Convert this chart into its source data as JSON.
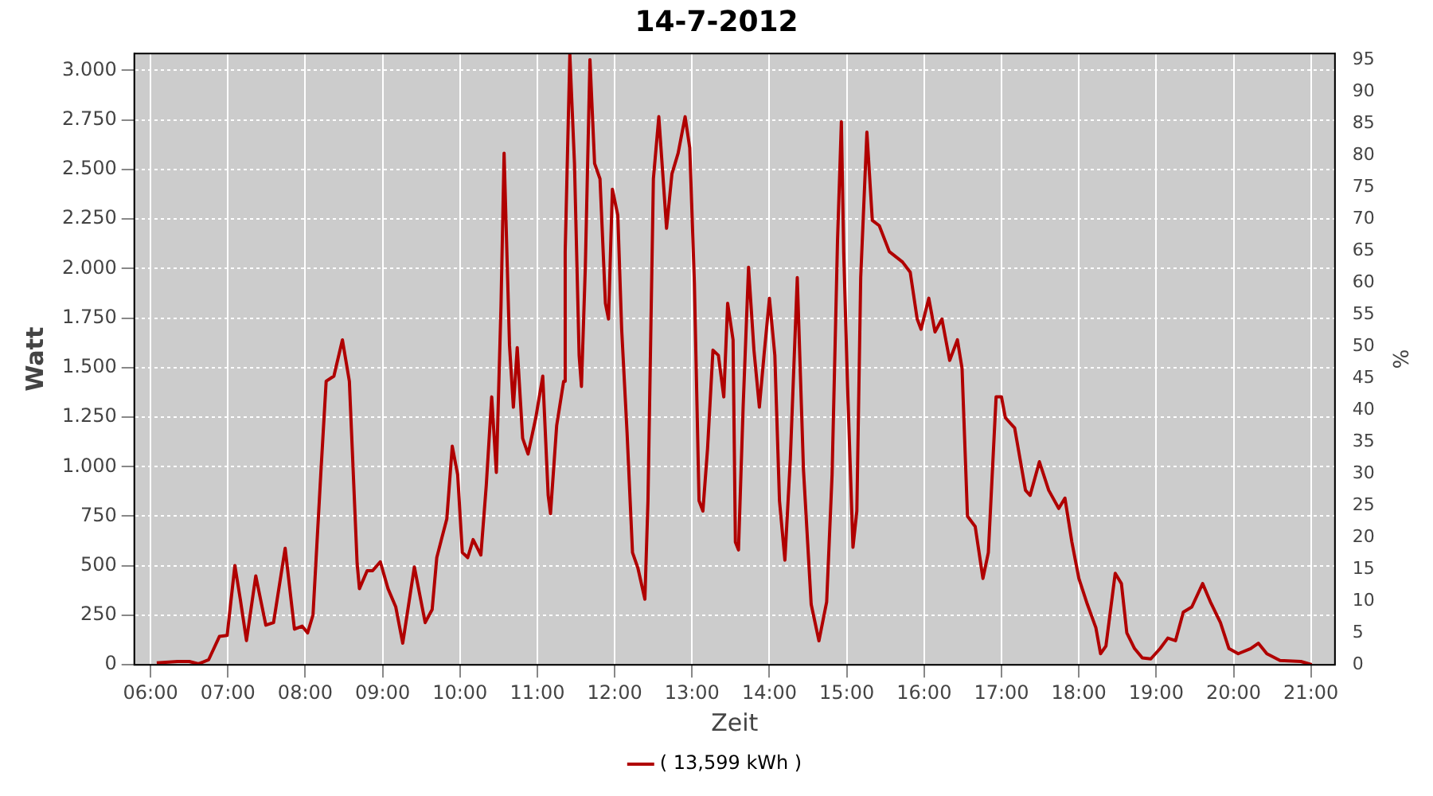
{
  "chart_data": {
    "type": "line",
    "title": "14-7-2012",
    "xlabel": "Zeit",
    "ylabel": "Watt",
    "y2label": "%",
    "xlim": [
      5.79,
      21.31
    ],
    "xticks": [
      {
        "value": 6,
        "label": "06:00"
      },
      {
        "value": 7,
        "label": "07:00"
      },
      {
        "value": 8,
        "label": "08:00"
      },
      {
        "value": 9,
        "label": "09:00"
      },
      {
        "value": 10,
        "label": "10:00"
      },
      {
        "value": 11,
        "label": "11:00"
      },
      {
        "value": 12,
        "label": "12:00"
      },
      {
        "value": 13,
        "label": "13:00"
      },
      {
        "value": 14,
        "label": "14:00"
      },
      {
        "value": 15,
        "label": "15:00"
      },
      {
        "value": 16,
        "label": "16:00"
      },
      {
        "value": 17,
        "label": "17:00"
      },
      {
        "value": 18,
        "label": "18:00"
      },
      {
        "value": 19,
        "label": "19:00"
      },
      {
        "value": 20,
        "label": "20:00"
      },
      {
        "value": 21,
        "label": "21:00"
      }
    ],
    "ylim": [
      0,
      3085
    ],
    "yticks": [
      0,
      250,
      500,
      750,
      {
        "value": 1000,
        "label": "1.000"
      },
      {
        "value": 1250,
        "label": "1.250"
      },
      {
        "value": 1500,
        "label": "1.500"
      },
      {
        "value": 1750,
        "label": "1.750"
      },
      {
        "value": 2000,
        "label": "2.000"
      },
      {
        "value": 2250,
        "label": "2.250"
      },
      {
        "value": 2500,
        "label": "2.500"
      },
      {
        "value": 2750,
        "label": "2.750"
      },
      {
        "value": 3000,
        "label": "3.000"
      }
    ],
    "y2lim": [
      0,
      96
    ],
    "y2ticks": [
      0,
      5,
      10,
      15,
      20,
      25,
      30,
      35,
      40,
      45,
      50,
      55,
      60,
      65,
      70,
      75,
      80,
      85,
      90,
      95
    ],
    "grid": true,
    "legend": "bottom",
    "marker": "none",
    "line_style": "solid",
    "series": [
      {
        "name": "( 13,599 kWh )",
        "color": "#b00000",
        "x": [
          6.08,
          6.35,
          6.5,
          6.62,
          6.75,
          6.89,
          6.99,
          7.09,
          7.16,
          7.24,
          7.36,
          7.49,
          7.59,
          7.74,
          7.86,
          7.96,
          8.03,
          8.1,
          8.2,
          8.27,
          8.37,
          8.48,
          8.57,
          8.67,
          8.7,
          8.8,
          8.87,
          8.97,
          9.07,
          9.17,
          9.26,
          9.41,
          9.55,
          9.64,
          9.7,
          9.76,
          9.83,
          9.9,
          9.97,
          10.03,
          10.1,
          10.17,
          10.27,
          10.34,
          10.41,
          10.47,
          10.53,
          10.57,
          10.64,
          10.69,
          10.74,
          10.81,
          10.88,
          10.98,
          11.07,
          11.14,
          11.17,
          11.25,
          11.34,
          11.36,
          11.42,
          11.48,
          11.54,
          11.57,
          11.62,
          11.68,
          11.74,
          11.81,
          11.88,
          11.92,
          11.97,
          12.04,
          12.09,
          12.16,
          12.23,
          12.3,
          12.39,
          12.43,
          12.5,
          12.57,
          12.64,
          12.67,
          12.74,
          12.82,
          12.91,
          12.97,
          13.03,
          13.09,
          13.14,
          13.2,
          13.27,
          13.34,
          13.41,
          13.46,
          13.53,
          13.56,
          13.6,
          13.66,
          13.73,
          13.8,
          13.87,
          13.93,
          14,
          14.07,
          14.13,
          14.2,
          14.27,
          14.36,
          14.44,
          14.54,
          14.64,
          14.74,
          14.81,
          14.88,
          14.93,
          14.96,
          15.01,
          15.08,
          15.13,
          15.18,
          15.26,
          15.33,
          15.42,
          15.55,
          15.72,
          15.82,
          15.91,
          15.96,
          16.06,
          16.14,
          16.23,
          16.33,
          16.43,
          16.49,
          16.56,
          16.66,
          16.76,
          16.83,
          16.93,
          17,
          17.05,
          17.17,
          17.31,
          17.37,
          17.49,
          17.61,
          17.74,
          17.82,
          17.91,
          18,
          18.11,
          18.22,
          18.28,
          18.35,
          18.47,
          18.55,
          18.62,
          18.72,
          18.82,
          18.93,
          19.05,
          19.15,
          19.25,
          19.35,
          19.46,
          19.6,
          19.7,
          19.83,
          19.94,
          20.06,
          20.22,
          20.32,
          20.43,
          20.6,
          20.87,
          21.01
        ],
        "values": [
          10,
          17,
          17,
          5,
          25,
          143,
          148,
          501,
          331,
          122,
          449,
          200,
          213,
          588,
          180,
          195,
          161,
          252,
          959,
          1431,
          1457,
          1640,
          1431,
          514,
          384,
          475,
          475,
          520,
          384,
          292,
          109,
          494,
          213,
          279,
          541,
          632,
          737,
          1103,
          959,
          567,
          541,
          632,
          554,
          907,
          1352,
          971,
          1810,
          2582,
          1614,
          1300,
          1601,
          1143,
          1064,
          1247,
          1457,
          855,
          763,
          1208,
          1431,
          2085,
          3080,
          2530,
          1562,
          1405,
          2006,
          3054,
          2530,
          2452,
          1824,
          1745,
          2400,
          2269,
          1693,
          1169,
          567,
          488,
          331,
          828,
          2452,
          2766,
          2373,
          2203,
          2478,
          2582,
          2766,
          2609,
          1928,
          828,
          776,
          1090,
          1588,
          1562,
          1352,
          1824,
          1640,
          619,
          580,
          1300,
          2006,
          1588,
          1300,
          1562,
          1850,
          1562,
          828,
          528,
          1038,
          1954,
          985,
          305,
          121,
          318,
          959,
          2138,
          2740,
          2085,
          1405,
          593,
          776,
          1954,
          2688,
          2243,
          2216,
          2085,
          2033,
          1981,
          1745,
          1693,
          1850,
          1680,
          1745,
          1536,
          1640,
          1496,
          750,
          698,
          436,
          567,
          1352,
          1352,
          1247,
          1195,
          881,
          855,
          1025,
          881,
          789,
          841,
          619,
          436,
          305,
          187,
          56,
          95,
          462,
          410,
          161,
          82,
          35,
          30,
          82,
          135,
          122,
          266,
          292,
          410,
          318,
          213,
          82,
          56,
          82,
          109,
          56,
          22,
          17,
          1
        ]
      }
    ]
  }
}
